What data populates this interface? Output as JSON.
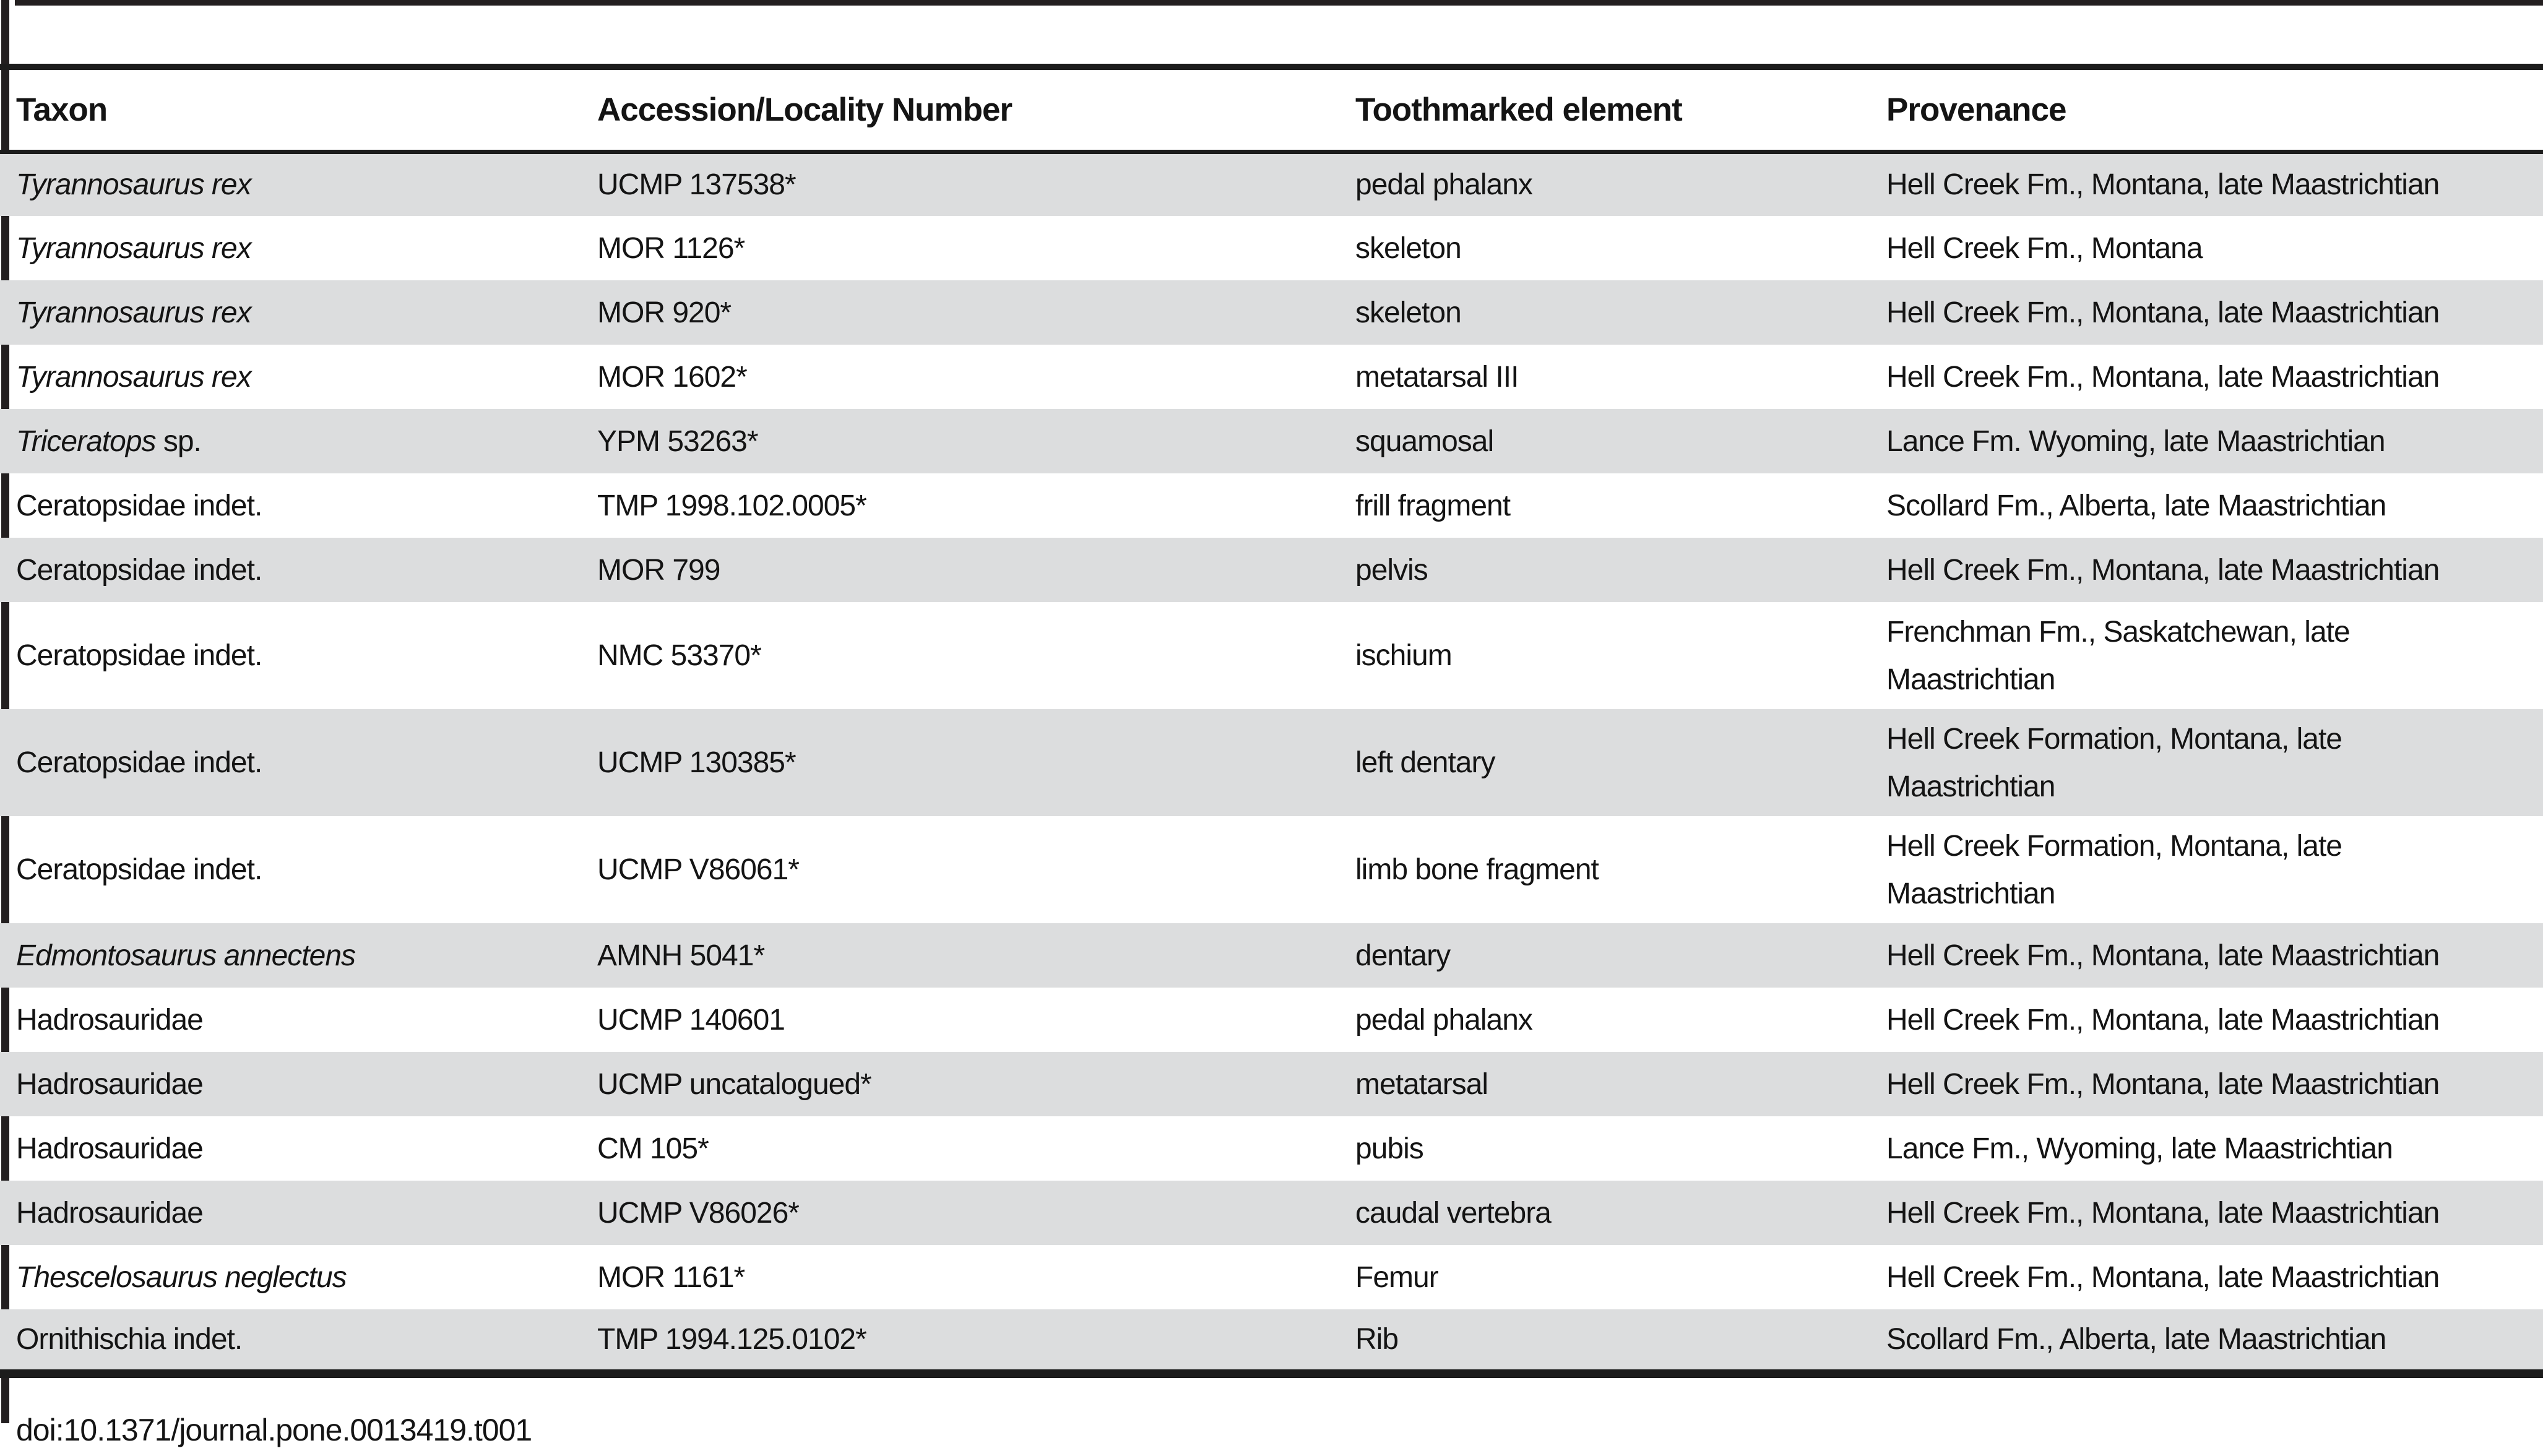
{
  "colors": {
    "row_shade": "#dcddde",
    "rule": "#1c1c1c",
    "edge_bar": "#231f20",
    "text": "#141414"
  },
  "table": {
    "columns": [
      "Taxon",
      "Accession/Locality Number",
      "Toothmarked element",
      "Provenance"
    ],
    "rows": [
      {
        "taxon_italic": "Tyrannosaurus rex",
        "taxon_roman": "",
        "accession": "UCMP 137538*",
        "element": "pedal phalanx",
        "provenance": "Hell Creek Fm., Montana, late Maastrichtian"
      },
      {
        "taxon_italic": "Tyrannosaurus rex",
        "taxon_roman": "",
        "accession": "MOR 1126*",
        "element": "skeleton",
        "provenance": "Hell Creek Fm., Montana"
      },
      {
        "taxon_italic": "Tyrannosaurus rex",
        "taxon_roman": "",
        "accession": "MOR 920*",
        "element": "skeleton",
        "provenance": "Hell Creek Fm., Montana, late Maastrichtian"
      },
      {
        "taxon_italic": "Tyrannosaurus rex",
        "taxon_roman": "",
        "accession": "MOR 1602*",
        "element": "metatarsal III",
        "provenance": "Hell Creek Fm., Montana, late Maastrichtian"
      },
      {
        "taxon_italic": "Triceratops",
        "taxon_roman": " sp.",
        "accession": "YPM 53263*",
        "element": "squamosal",
        "provenance": "Lance Fm. Wyoming, late Maastrichtian"
      },
      {
        "taxon_italic": "",
        "taxon_roman": "Ceratopsidae indet.",
        "accession": "TMP 1998.102.0005*",
        "element": "frill fragment",
        "provenance": "Scollard Fm., Alberta, late Maastrichtian"
      },
      {
        "taxon_italic": "",
        "taxon_roman": "Ceratopsidae indet.",
        "accession": "MOR 799",
        "element": "pelvis",
        "provenance": "Hell Creek Fm., Montana, late Maastrichtian"
      },
      {
        "taxon_italic": "",
        "taxon_roman": "Ceratopsidae indet.",
        "accession": "NMC 53370*",
        "element": "ischium",
        "provenance": "Frenchman Fm., Saskatchewan, late\nMaastrichtian"
      },
      {
        "taxon_italic": "",
        "taxon_roman": "Ceratopsidae indet.",
        "accession": "UCMP 130385*",
        "element": "left dentary",
        "provenance": "Hell Creek Formation, Montana, late\nMaastrichtian"
      },
      {
        "taxon_italic": "",
        "taxon_roman": "Ceratopsidae indet.",
        "accession": "UCMP V86061*",
        "element": "limb bone fragment",
        "provenance": "Hell Creek Formation, Montana, late\nMaastrichtian"
      },
      {
        "taxon_italic": "Edmontosaurus annectens",
        "taxon_roman": "",
        "accession": "AMNH 5041*",
        "element": "dentary",
        "provenance": "Hell Creek Fm., Montana, late Maastrichtian"
      },
      {
        "taxon_italic": "",
        "taxon_roman": "Hadrosauridae",
        "accession": "UCMP 140601",
        "element": "pedal phalanx",
        "provenance": "Hell Creek Fm., Montana, late Maastrichtian"
      },
      {
        "taxon_italic": "",
        "taxon_roman": "Hadrosauridae",
        "accession": "UCMP uncatalogued*",
        "element": "metatarsal",
        "provenance": "Hell Creek Fm., Montana, late Maastrichtian"
      },
      {
        "taxon_italic": "",
        "taxon_roman": "Hadrosauridae",
        "accession": "CM 105*",
        "element": "pubis",
        "provenance": "Lance Fm., Wyoming, late Maastrichtian"
      },
      {
        "taxon_italic": "",
        "taxon_roman": "Hadrosauridae",
        "accession": "UCMP V86026*",
        "element": "caudal vertebra",
        "provenance": "Hell Creek Fm., Montana, late Maastrichtian"
      },
      {
        "taxon_italic": "Thescelosaurus neglectus",
        "taxon_roman": "",
        "accession": "MOR 1161*",
        "element": "Femur",
        "provenance": "Hell Creek Fm., Montana, late Maastrichtian"
      },
      {
        "taxon_italic": "",
        "taxon_roman": "Ornithischia indet.",
        "accession": "TMP 1994.125.0102*",
        "element": "Rib",
        "provenance": "Scollard Fm., Alberta, late Maastrichtian"
      }
    ]
  },
  "footer": {
    "doi": "doi:10.1371/journal.pone.0013419.t001"
  }
}
